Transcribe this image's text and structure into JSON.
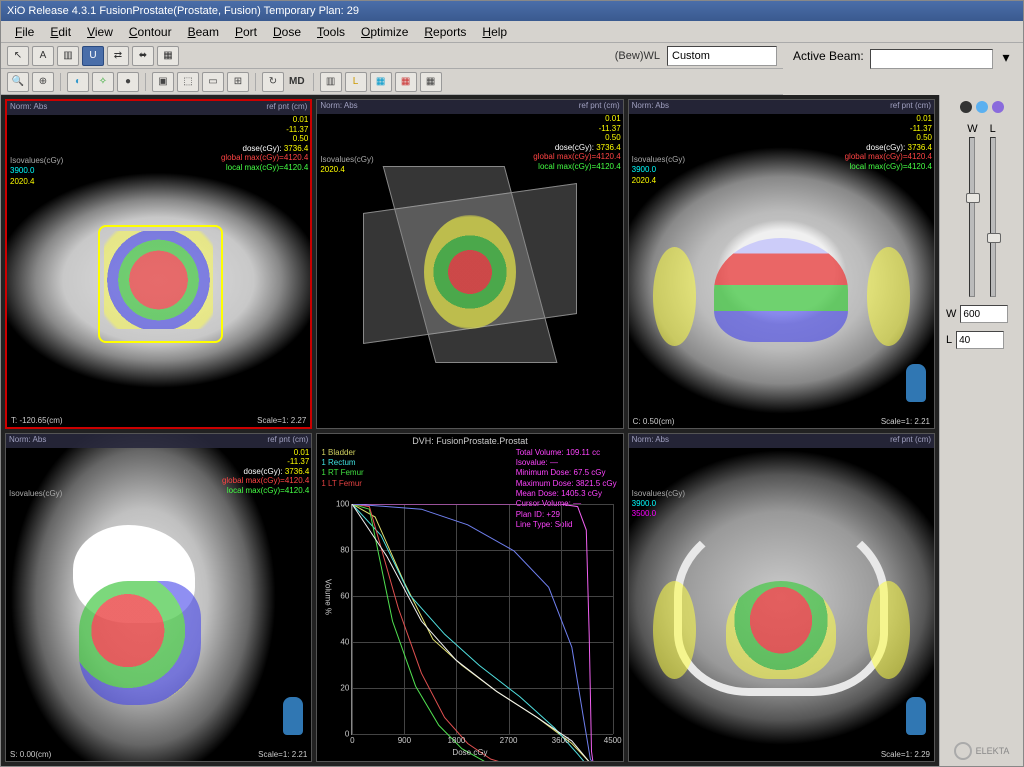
{
  "titlebar": "XiO  Release 4.3.1  FusionProstate(Prostate, Fusion) Temporary Plan: 29",
  "menus": [
    "File",
    "Edit",
    "View",
    "Contour",
    "Beam",
    "Port",
    "Dose",
    "Tools",
    "Optimize",
    "Reports",
    "Help"
  ],
  "toolbar1": {
    "buttons": [
      "↖",
      "A",
      "▥",
      "U",
      "⇄",
      "⬌",
      "▦"
    ],
    "active_idx": 3,
    "bw_label": "(Bew)WL",
    "bw_value": "Custom"
  },
  "toolbar2": {
    "buttons": [
      "🔍",
      "⊕",
      "◐",
      "✧",
      "●",
      "▣",
      "⬚",
      "▭",
      "⊞",
      "↻",
      "MD",
      "▥",
      "L",
      "▦",
      "▦",
      "▦"
    ]
  },
  "active_beam": {
    "label": "Active Beam:",
    "value": ""
  },
  "views": {
    "headers": {
      "norm": "Norm:  Abs",
      "refpnt": "ref pnt (cm)"
    },
    "stats_common": {
      "x": "0.01",
      "y": "-11.37",
      "z": "0.50",
      "dose_label": "dose(cGy):",
      "dose": "3736.4",
      "gmax_label": "global max(cGy)=",
      "gmax": "4120.4",
      "lmax_label": "local max(cGy)=",
      "lmax": "4120.4"
    },
    "iso": {
      "header": "Isovalues(cGy)",
      "v1": "3900.0",
      "v2": "2020.4",
      "v3": "3500.0"
    },
    "v1": {
      "footL": "T: -120.65(cm)",
      "footR": "Scale=1: 2.27"
    },
    "v3": {
      "footL": "C:  0.50(cm)",
      "footR": "Scale=1: 2.21"
    },
    "v4": {
      "footL": "S:  0.00(cm)",
      "footR": "Scale=1: 2.21"
    },
    "v6": {
      "footL": "",
      "footR": "Scale=1: 2.29"
    }
  },
  "dvh": {
    "title": "DVH: FusionProstate.Prostat",
    "legend": [
      {
        "label": "1 Bladder",
        "color": "#d0d060"
      },
      {
        "label": "1 Rectum",
        "color": "#40e0e0"
      },
      {
        "label": "1 RT Femur",
        "color": "#40e040"
      },
      {
        "label": "1 LT Femur",
        "color": "#e04040"
      }
    ],
    "stats": [
      {
        "label": "Total Volume:",
        "value": "109.11 cc"
      },
      {
        "label": "Isovalue:",
        "value": "—"
      },
      {
        "label": "Minimum Dose:",
        "value": "67.5 cGy"
      },
      {
        "label": "Maximum Dose:",
        "value": "3821.5 cGy"
      },
      {
        "label": "Mean Dose:",
        "value": "1405.3 cGy"
      },
      {
        "label": "Cursor Volume:",
        "value": "—"
      },
      {
        "label": "Plan ID:",
        "value": "+29"
      },
      {
        "label": "Line Type:",
        "value": "Solid"
      }
    ],
    "y": {
      "title": "Volume %",
      "ticks": [
        0,
        20,
        40,
        60,
        80,
        100
      ]
    },
    "x": {
      "title": "Dose cGy",
      "ticks": [
        0,
        900,
        1800,
        2700,
        3600,
        4500
      ]
    },
    "grid_color": "#444444",
    "background_color": "#000000",
    "curves": [
      {
        "name": "bladder",
        "color": "#e0e070",
        "points": [
          [
            0,
            100
          ],
          [
            400,
            95
          ],
          [
            900,
            70
          ],
          [
            1400,
            48
          ],
          [
            1900,
            38
          ],
          [
            2500,
            28
          ],
          [
            3200,
            18
          ],
          [
            3800,
            8
          ],
          [
            4100,
            1
          ],
          [
            4200,
            0
          ]
        ]
      },
      {
        "name": "rectum",
        "color": "#50e0e0",
        "points": [
          [
            0,
            100
          ],
          [
            500,
            88
          ],
          [
            1000,
            65
          ],
          [
            1600,
            50
          ],
          [
            2200,
            38
          ],
          [
            2900,
            26
          ],
          [
            3500,
            14
          ],
          [
            3900,
            4
          ],
          [
            4050,
            0
          ]
        ]
      },
      {
        "name": "rt-femur",
        "color": "#50e050",
        "points": [
          [
            0,
            100
          ],
          [
            300,
            98
          ],
          [
            700,
            55
          ],
          [
            1100,
            30
          ],
          [
            1500,
            15
          ],
          [
            1900,
            6
          ],
          [
            2300,
            1
          ],
          [
            2600,
            0
          ]
        ]
      },
      {
        "name": "lt-femur",
        "color": "#e05050",
        "points": [
          [
            0,
            100
          ],
          [
            300,
            99
          ],
          [
            800,
            60
          ],
          [
            1200,
            35
          ],
          [
            1600,
            18
          ],
          [
            2000,
            8
          ],
          [
            2400,
            2
          ],
          [
            2700,
            0
          ]
        ]
      },
      {
        "name": "target",
        "color": "#f060f0",
        "points": [
          [
            0,
            100
          ],
          [
            3600,
            100
          ],
          [
            3900,
            99
          ],
          [
            4050,
            90
          ],
          [
            4100,
            50
          ],
          [
            4140,
            5
          ],
          [
            4170,
            0
          ]
        ]
      },
      {
        "name": "blue",
        "color": "#7080f0",
        "points": [
          [
            0,
            100
          ],
          [
            1200,
            98
          ],
          [
            2000,
            92
          ],
          [
            2800,
            82
          ],
          [
            3400,
            68
          ],
          [
            3800,
            45
          ],
          [
            4000,
            18
          ],
          [
            4120,
            2
          ],
          [
            4180,
            0
          ]
        ]
      },
      {
        "name": "white",
        "color": "#f0f0f0",
        "points": [
          [
            0,
            100
          ],
          [
            600,
            80
          ],
          [
            1200,
            55
          ],
          [
            1800,
            40
          ],
          [
            2500,
            28
          ],
          [
            3200,
            18
          ],
          [
            3800,
            9
          ],
          [
            4100,
            1
          ],
          [
            4200,
            0
          ]
        ]
      }
    ]
  },
  "colors": {
    "dose_levels": [
      "#e94444",
      "#44c844",
      "#4444e9",
      "#ffff44"
    ],
    "accent": "#4a6ea9"
  },
  "rpanel": {
    "W": {
      "label": "W",
      "value": "600",
      "thumb_pct": 35
    },
    "L": {
      "label": "L",
      "value": "40",
      "thumb_pct": 60
    },
    "dots": [
      "#333333",
      "#5bb0f0",
      "#8a6bdc"
    ],
    "logo": "ELEKTA"
  }
}
